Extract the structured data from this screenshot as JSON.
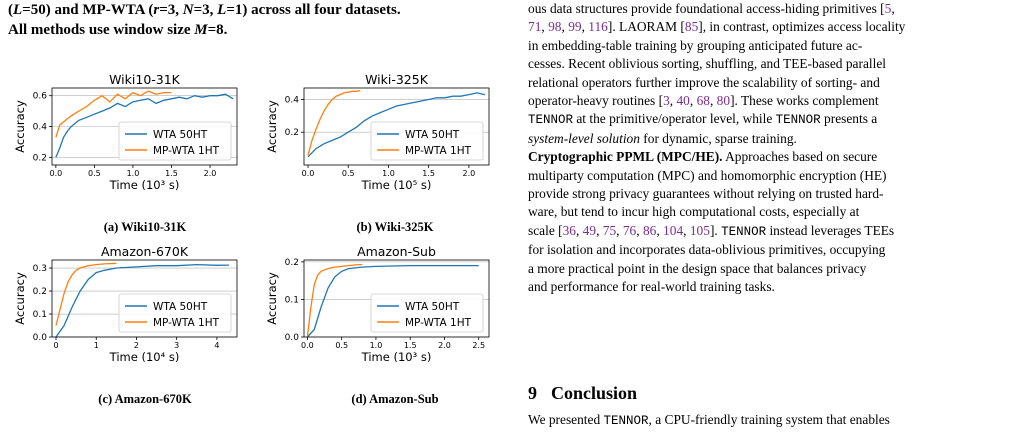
{
  "left_caption": {
    "line1_parts": [
      "(",
      "L",
      "=50) and MP-WTA (",
      "r",
      "=3, ",
      "N",
      "=3, ",
      "L",
      "=1) across all four datasets."
    ],
    "line2_parts": [
      "All methods use window size ",
      "M",
      "=8."
    ]
  },
  "colors": {
    "wta": "#1f77b4",
    "mpwta": "#ff7f0e",
    "grid": "#b0b0b0"
  },
  "chart_data": [
    {
      "type": "line",
      "title": "Wiki10-31K",
      "ylabel": "Accuracy",
      "xlabel": "Time (10³ s)",
      "xlim": [
        -0.05,
        2.35
      ],
      "ylim": [
        0.15,
        0.65
      ],
      "xticks": [
        0.0,
        0.5,
        1.0,
        1.5,
        2.0
      ],
      "xtick_labels": [
        "0.0",
        "0.5",
        "1.0",
        "1.5",
        "2.0"
      ],
      "yticks": [
        0.2,
        0.4,
        0.6
      ],
      "ytick_labels": [
        "0.2",
        "0.4",
        "0.6"
      ],
      "legend": "lower-right",
      "series": [
        {
          "name": "WTA 50HT",
          "x": [
            0.0,
            0.05,
            0.1,
            0.15,
            0.2,
            0.3,
            0.4,
            0.5,
            0.6,
            0.7,
            0.8,
            0.9,
            1.0,
            1.1,
            1.2,
            1.3,
            1.4,
            1.5,
            1.6,
            1.7,
            1.8,
            1.9,
            2.0,
            2.1,
            2.2,
            2.3
          ],
          "y": [
            0.2,
            0.26,
            0.33,
            0.37,
            0.4,
            0.44,
            0.46,
            0.48,
            0.5,
            0.52,
            0.55,
            0.53,
            0.56,
            0.57,
            0.58,
            0.55,
            0.57,
            0.58,
            0.59,
            0.58,
            0.6,
            0.59,
            0.6,
            0.6,
            0.61,
            0.58
          ]
        },
        {
          "name": "MP-WTA 1HT",
          "x": [
            0.0,
            0.05,
            0.1,
            0.15,
            0.2,
            0.3,
            0.4,
            0.5,
            0.6,
            0.7,
            0.8,
            0.9,
            1.0,
            1.1,
            1.2,
            1.3,
            1.4,
            1.5
          ],
          "y": [
            0.33,
            0.41,
            0.43,
            0.45,
            0.47,
            0.5,
            0.53,
            0.57,
            0.6,
            0.56,
            0.61,
            0.58,
            0.62,
            0.6,
            0.63,
            0.61,
            0.62,
            0.62
          ]
        }
      ]
    },
    {
      "type": "line",
      "title": "Wiki-325K",
      "ylabel": "Accuracy",
      "xlabel": "Time (10⁵ s)",
      "xlim": [
        -0.05,
        2.25
      ],
      "ylim": [
        0.0,
        0.47
      ],
      "xticks": [
        0.0,
        0.5,
        1.0,
        1.5,
        2.0
      ],
      "xtick_labels": [
        "0.0",
        "0.5",
        "1.0",
        "1.5",
        "2.0"
      ],
      "yticks": [
        0.2,
        0.4
      ],
      "ytick_labels": [
        "0.2",
        "0.4"
      ],
      "legend": "lower-right",
      "series": [
        {
          "name": "WTA 50HT",
          "x": [
            0.0,
            0.1,
            0.2,
            0.3,
            0.4,
            0.5,
            0.6,
            0.7,
            0.8,
            0.9,
            1.0,
            1.1,
            1.2,
            1.3,
            1.4,
            1.5,
            1.6,
            1.7,
            1.8,
            1.9,
            2.0,
            2.1,
            2.2
          ],
          "y": [
            0.05,
            0.1,
            0.13,
            0.15,
            0.17,
            0.2,
            0.23,
            0.27,
            0.3,
            0.32,
            0.34,
            0.36,
            0.37,
            0.38,
            0.39,
            0.4,
            0.41,
            0.41,
            0.42,
            0.42,
            0.43,
            0.44,
            0.43
          ]
        },
        {
          "name": "MP-WTA 1HT",
          "x": [
            0.0,
            0.05,
            0.1,
            0.15,
            0.2,
            0.25,
            0.3,
            0.35,
            0.4,
            0.45,
            0.5,
            0.55,
            0.6,
            0.65
          ],
          "y": [
            0.06,
            0.15,
            0.22,
            0.28,
            0.33,
            0.37,
            0.4,
            0.42,
            0.43,
            0.44,
            0.445,
            0.45,
            0.45,
            0.455
          ]
        }
      ]
    },
    {
      "type": "line",
      "title": "Amazon-670K",
      "ylabel": "Accuracy",
      "xlabel": "Time (10⁴ s)",
      "xlim": [
        -0.1,
        4.5
      ],
      "ylim": [
        0.0,
        0.335
      ],
      "xticks": [
        0,
        1,
        2,
        3,
        4
      ],
      "xtick_labels": [
        "0",
        "1",
        "2",
        "3",
        "4"
      ],
      "yticks": [
        0.0,
        0.1,
        0.2,
        0.3
      ],
      "ytick_labels": [
        "0.0",
        "0.1",
        "0.2",
        "0.3"
      ],
      "legend": "lower-right",
      "series": [
        {
          "name": "WTA 50HT",
          "x": [
            0.0,
            0.2,
            0.4,
            0.6,
            0.8,
            1.0,
            1.2,
            1.5,
            2.0,
            2.5,
            3.0,
            3.5,
            4.0,
            4.3
          ],
          "y": [
            0.0,
            0.05,
            0.13,
            0.2,
            0.25,
            0.28,
            0.29,
            0.3,
            0.305,
            0.31,
            0.31,
            0.315,
            0.312,
            0.313
          ]
        },
        {
          "name": "MP-WTA 1HT",
          "x": [
            0.0,
            0.1,
            0.2,
            0.3,
            0.4,
            0.5,
            0.6,
            0.8,
            1.0,
            1.2,
            1.5
          ],
          "y": [
            0.05,
            0.12,
            0.19,
            0.24,
            0.27,
            0.29,
            0.3,
            0.31,
            0.315,
            0.318,
            0.32
          ]
        }
      ]
    },
    {
      "type": "line",
      "title": "Amazon-Sub",
      "ylabel": "Accuracy",
      "xlabel": "Time (10³ s)",
      "xlim": [
        -0.05,
        2.65
      ],
      "ylim": [
        0.0,
        0.205
      ],
      "xticks": [
        0.0,
        0.5,
        1.0,
        1.5,
        2.0,
        2.5
      ],
      "xtick_labels": [
        "0.0",
        "0.5",
        "1.0",
        "1.5",
        "2.0",
        "2.5"
      ],
      "yticks": [
        0.0,
        0.1,
        0.2
      ],
      "ytick_labels": [
        "0.0",
        "0.1",
        "0.2"
      ],
      "legend": "lower-right",
      "series": [
        {
          "name": "WTA 50HT",
          "x": [
            0.0,
            0.1,
            0.2,
            0.3,
            0.4,
            0.5,
            0.6,
            0.8,
            1.0,
            1.5,
            2.0,
            2.5
          ],
          "y": [
            0.0,
            0.02,
            0.08,
            0.13,
            0.16,
            0.175,
            0.182,
            0.186,
            0.188,
            0.19,
            0.19,
            0.19
          ]
        },
        {
          "name": "MP-WTA 1HT",
          "x": [
            0.0,
            0.05,
            0.1,
            0.15,
            0.2,
            0.3,
            0.4,
            0.5,
            0.6,
            0.7,
            0.8
          ],
          "y": [
            0.0,
            0.08,
            0.14,
            0.165,
            0.175,
            0.182,
            0.186,
            0.188,
            0.19,
            0.192,
            0.193
          ]
        }
      ]
    }
  ],
  "subcaptions": [
    "(a) Wiki10-31K",
    "(b) Wiki-325K",
    "(c) Amazon-670K",
    "(d) Amazon-Sub"
  ],
  "right_column": {
    "line1_parts": [
      "ous data structures provide foundational access-hiding primitives [",
      "5",
      ","
    ],
    "line2_parts": [
      "71",
      ", ",
      "98",
      ", ",
      "99",
      ", ",
      "116",
      "]. LAORAM [",
      "85",
      "], in contrast, optimizes access locality"
    ],
    "line3": "in embedding-table training by grouping anticipated future ac-",
    "line4": "cesses. Recent oblivious sorting, shuffling, and TEE-based parallel",
    "line5": "relational operators further improve the scalability of sorting- and",
    "line6_parts": [
      "operator-heavy routines [",
      "3",
      ", ",
      "40",
      ", ",
      "68",
      ", ",
      "80",
      "]. These works complement"
    ],
    "line7_parts": [
      "TENNOR",
      " at the primitive/operator level, while ",
      "TENNOR",
      " presents a"
    ],
    "line8_parts": [
      "system-level solution",
      " for dynamic, sparse training."
    ],
    "para2_heading": "Cryptographic PPML (MPC/HE).",
    "para2_line1_rest": " Approaches based on secure",
    "para2_line2": "multiparty computation (MPC) and homomorphic encryption (HE)",
    "para2_line3": "provide strong privacy guarantees without relying on trusted hard-",
    "para2_line4": "ware, but tend to incur high computational costs, especially at",
    "para2_line5_parts": [
      "scale [",
      "36",
      ", ",
      "49",
      ", ",
      "75",
      ", ",
      "76",
      ", ",
      "86",
      ", ",
      "104",
      ", ",
      "105",
      "]. ",
      "TENNOR",
      " instead leverages TEEs"
    ],
    "para2_line6": "for isolation and incorporates data-oblivious primitives, occupying",
    "para2_line7": "a more practical point in the design space that balances privacy",
    "para2_line8": "and performance for real-world training tasks."
  },
  "section": {
    "number": "9",
    "title": "Conclusion"
  },
  "conclusion_parts": [
    "We presented ",
    "TENNOR",
    ", a CPU-friendly training system that enables"
  ]
}
